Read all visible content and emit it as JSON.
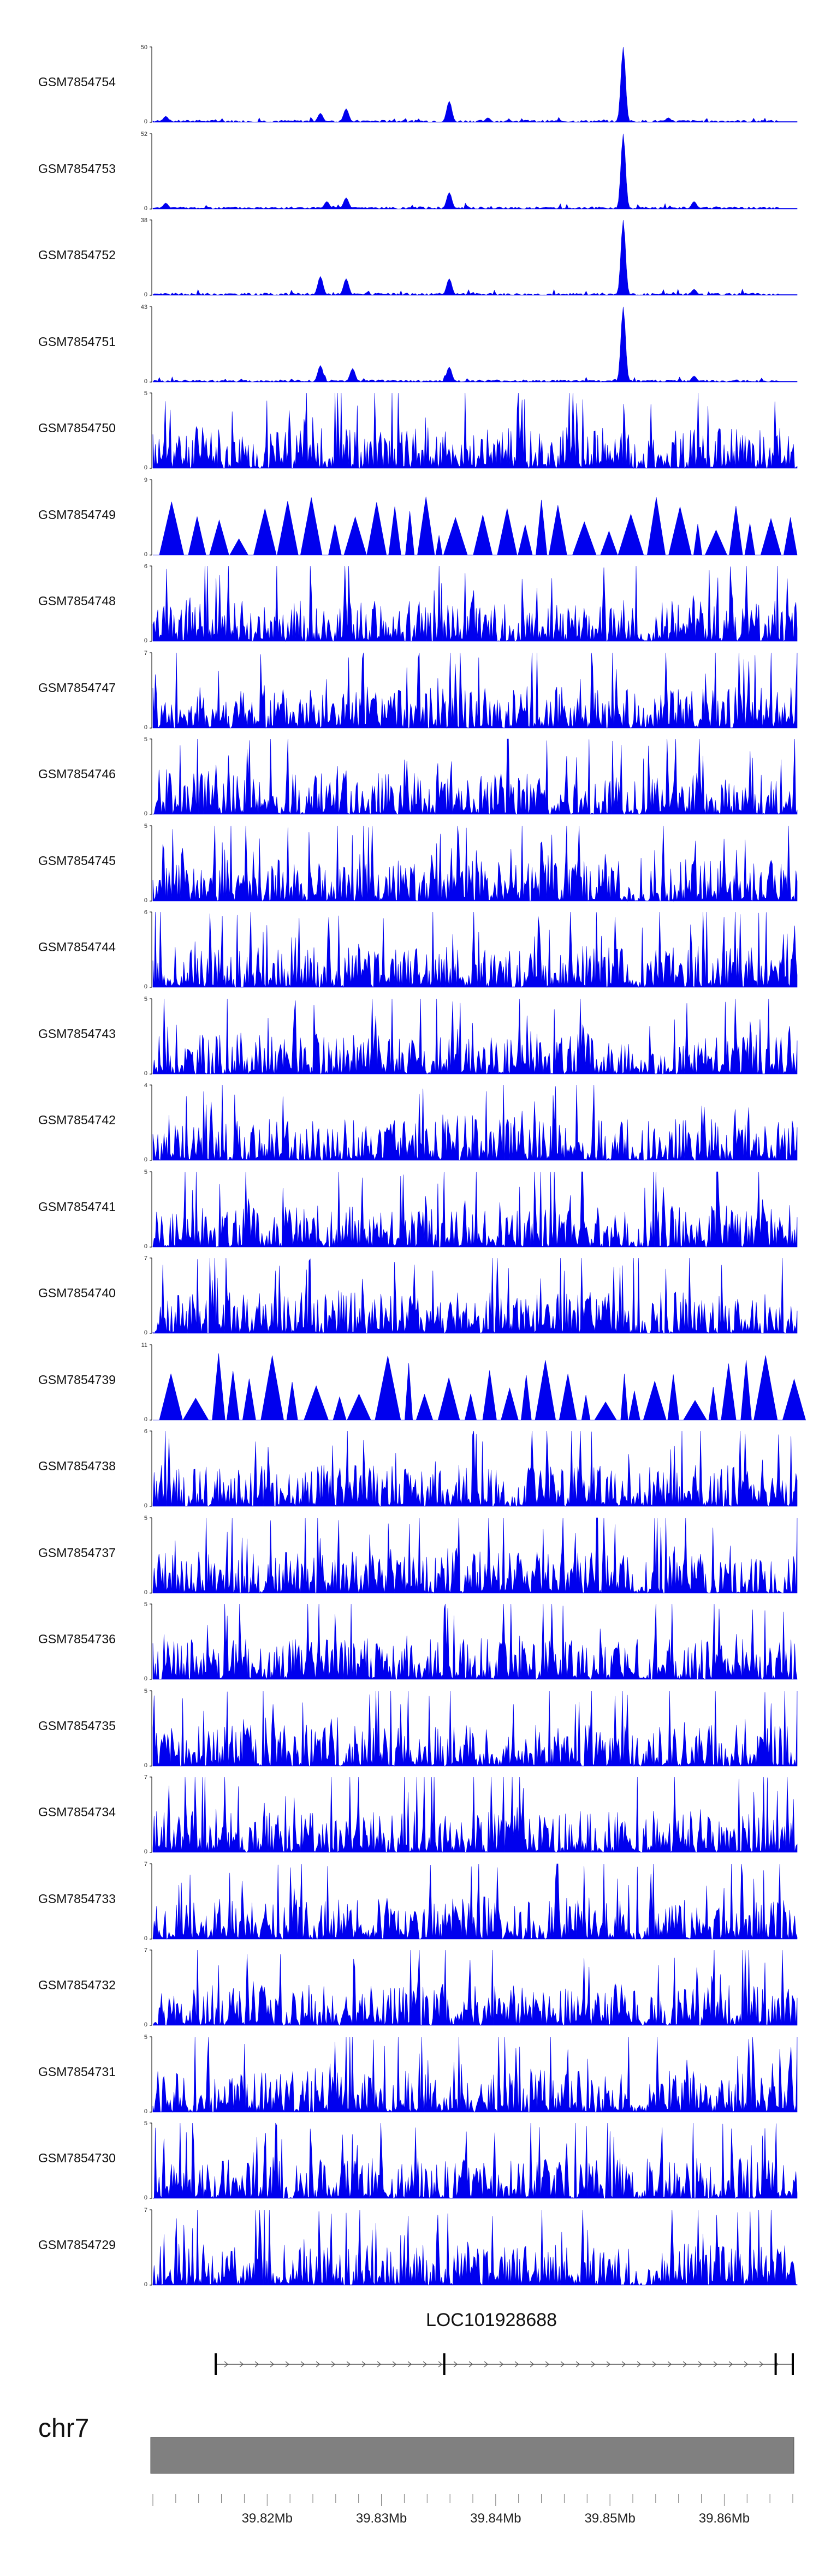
{
  "chart_data": {
    "type": "area",
    "region": {
      "start": 39810000,
      "end": 39866000
    },
    "xticks": [
      {
        "value": 39820000,
        "label": "39.82Mb"
      },
      {
        "value": 39830000,
        "label": "39.83Mb"
      },
      {
        "value": 39840000,
        "label": "39.84Mb"
      },
      {
        "value": 39850000,
        "label": "39.85Mb"
      },
      {
        "value": 39860000,
        "label": "39.86Mb"
      }
    ],
    "tracks": [
      {
        "name": "GSM7854754",
        "ymax": 50,
        "kind": "peak",
        "peaks": [
          [
            0.73,
            1.0
          ],
          [
            0.46,
            0.28
          ],
          [
            0.3,
            0.18
          ],
          [
            0.26,
            0.12
          ],
          [
            0.52,
            0.06
          ],
          [
            0.8,
            0.06
          ],
          [
            0.02,
            0.08
          ]
        ]
      },
      {
        "name": "GSM7854753",
        "ymax": 52,
        "kind": "peak",
        "peaks": [
          [
            0.73,
            1.0
          ],
          [
            0.46,
            0.22
          ],
          [
            0.3,
            0.15
          ],
          [
            0.27,
            0.1
          ],
          [
            0.84,
            0.1
          ],
          [
            0.02,
            0.08
          ]
        ]
      },
      {
        "name": "GSM7854752",
        "ymax": 38,
        "kind": "peak",
        "peaks": [
          [
            0.73,
            1.0
          ],
          [
            0.46,
            0.22
          ],
          [
            0.26,
            0.25
          ],
          [
            0.3,
            0.22
          ],
          [
            0.84,
            0.08
          ]
        ]
      },
      {
        "name": "GSM7854751",
        "ymax": 43,
        "kind": "peak",
        "peaks": [
          [
            0.73,
            1.0
          ],
          [
            0.46,
            0.2
          ],
          [
            0.26,
            0.22
          ],
          [
            0.31,
            0.18
          ],
          [
            0.84,
            0.08
          ]
        ]
      },
      {
        "name": "GSM7854750",
        "ymax": 5,
        "kind": "noise",
        "seed": 11
      },
      {
        "name": "GSM7854749",
        "ymax": 9,
        "kind": "sparse",
        "seed": 23
      },
      {
        "name": "GSM7854748",
        "ymax": 6,
        "kind": "noise",
        "seed": 37
      },
      {
        "name": "GSM7854747",
        "ymax": 7,
        "kind": "noise",
        "seed": 41
      },
      {
        "name": "GSM7854746",
        "ymax": 5,
        "kind": "noise",
        "seed": 53
      },
      {
        "name": "GSM7854745",
        "ymax": 5,
        "kind": "noise",
        "seed": 67
      },
      {
        "name": "GSM7854744",
        "ymax": 6,
        "kind": "noise",
        "seed": 71
      },
      {
        "name": "GSM7854743",
        "ymax": 5,
        "kind": "noise",
        "seed": 83
      },
      {
        "name": "GSM7854742",
        "ymax": 4,
        "kind": "noise",
        "seed": 97
      },
      {
        "name": "GSM7854741",
        "ymax": 5,
        "kind": "noise",
        "seed": 101
      },
      {
        "name": "GSM7854740",
        "ymax": 7,
        "kind": "noise",
        "seed": 113
      },
      {
        "name": "GSM7854739",
        "ymax": 11,
        "kind": "sparse",
        "seed": 127
      },
      {
        "name": "GSM7854738",
        "ymax": 6,
        "kind": "noise",
        "seed": 131
      },
      {
        "name": "GSM7854737",
        "ymax": 5,
        "kind": "noise",
        "seed": 149
      },
      {
        "name": "GSM7854736",
        "ymax": 5,
        "kind": "noise",
        "seed": 151
      },
      {
        "name": "GSM7854735",
        "ymax": 5,
        "kind": "noise",
        "seed": 163
      },
      {
        "name": "GSM7854734",
        "ymax": 7,
        "kind": "noise",
        "seed": 173
      },
      {
        "name": "GSM7854733",
        "ymax": 7,
        "kind": "noise",
        "seed": 181
      },
      {
        "name": "GSM7854732",
        "ymax": 7,
        "kind": "noise",
        "seed": 193
      },
      {
        "name": "GSM7854731",
        "ymax": 5,
        "kind": "noise",
        "seed": 197
      },
      {
        "name": "GSM7854730",
        "ymax": 5,
        "kind": "noise",
        "seed": 211
      },
      {
        "name": "GSM7854729",
        "ymax": 7,
        "kind": "noise",
        "seed": 223
      }
    ],
    "gene": {
      "name": "LOC101928688",
      "start": 39815500,
      "end": 39866000,
      "strand": "+",
      "exons": [
        39815500,
        39835500,
        39864500,
        39866000
      ]
    },
    "chromosome": "chr7",
    "colors": {
      "signal": "#0000ee",
      "ideogram": "#808080",
      "axis": "#000000"
    }
  }
}
